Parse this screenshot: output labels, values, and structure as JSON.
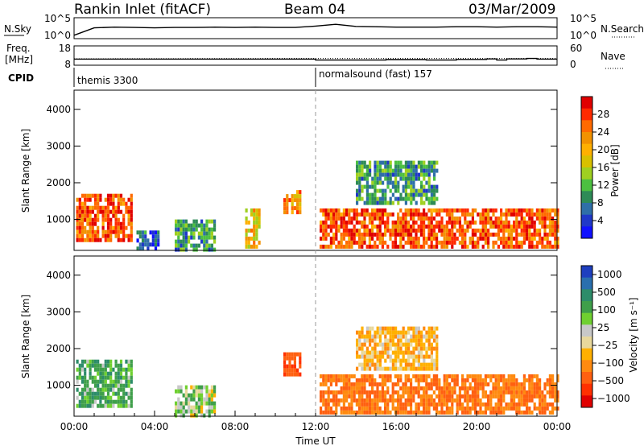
{
  "header": {
    "title": "Rankin Inlet (fitACF)",
    "beam": "Beam 04",
    "date": "03/Mar/2009"
  },
  "noise_panel": {
    "left_label": "N.Sky",
    "left_ticks": [
      "10^5",
      "10^0"
    ],
    "right_label": "N.Search",
    "right_ticks": [
      "10^5",
      "10^0"
    ]
  },
  "freq_panel": {
    "left_label_1": "Freq.",
    "left_label_2": "[MHz]",
    "left_ticks": [
      "18",
      "8"
    ],
    "right_label": "Nave",
    "right_ticks": [
      "60",
      "0"
    ]
  },
  "cpid": {
    "label": "CPID",
    "segments": [
      {
        "name": "themis 3300",
        "start_hour": 0
      },
      {
        "name": "normalsound (fast) 157",
        "start_hour": 12
      }
    ]
  },
  "axes": {
    "ylabel": "Slant Range [km]",
    "y_ticks": [
      "4000",
      "3000",
      "2000",
      "1000"
    ],
    "x_ticks": [
      "00:00",
      "04:00",
      "08:00",
      "12:00",
      "16:00",
      "20:00",
      "00:00"
    ],
    "xlabel": "Time UT"
  },
  "colorbars": {
    "power": {
      "label": "Power [dB]",
      "ticks": [
        "28",
        "24",
        "20",
        "16",
        "12",
        "8",
        "4"
      ],
      "colors": [
        "#e00000",
        "#ff2a00",
        "#ff6a00",
        "#f29200",
        "#ffb000",
        "#d8c000",
        "#9fd020",
        "#4cc040",
        "#2e8b57",
        "#2f6fa8",
        "#2038c8",
        "#1010ff"
      ]
    },
    "velocity": {
      "label": "Velocity [m s⁻¹]",
      "ticks": [
        "1000",
        "500",
        "100",
        "25",
        "−25",
        "−100",
        "−500",
        "−1000"
      ],
      "colors": [
        "#1e3fbf",
        "#2a6fae",
        "#2d8c6a",
        "#3f9f4a",
        "#6fd030",
        "#c8c8c8",
        "#e8d89c",
        "#ffb000",
        "#ff8a10",
        "#ff6010",
        "#ff3000",
        "#e00000"
      ]
    }
  },
  "chart_data": [
    {
      "type": "line",
      "panel": "noise",
      "series": [
        {
          "x": [
            0,
            1,
            2,
            3,
            4,
            5,
            6,
            7,
            8,
            9,
            10,
            11,
            12,
            13,
            14,
            15,
            16,
            17,
            18,
            19,
            20,
            21,
            22,
            23,
            24
          ],
          "y": [
            0.5,
            2.6,
            2.8,
            2.7,
            2.6,
            2.7,
            2.7,
            2.8,
            2.7,
            2.8,
            2.7,
            2.7,
            3.1,
            3.6,
            3.0,
            2.9,
            2.8,
            2.8,
            2.8,
            2.9,
            2.9,
            2.8,
            2.9,
            2.9,
            2.8
          ]
        }
      ]
    },
    {
      "type": "line",
      "panel": "frequency",
      "series": [
        {
          "x": [
            0,
            12,
            12,
            15.5,
            15.5,
            17.5,
            17.5,
            19,
            19,
            20.5,
            20.5,
            21,
            21,
            21.5,
            21.5,
            22.5,
            22.5,
            23,
            23,
            24
          ],
          "y": [
            10.8,
            10.8,
            10.2,
            10.2,
            10.5,
            10.5,
            10.2,
            10.2,
            10.6,
            10.6,
            10.9,
            10.9,
            10.2,
            10.2,
            10.9,
            10.9,
            11.2,
            11.2,
            10.8,
            10.8
          ]
        },
        {
          "x": [
            0,
            12,
            24
          ],
          "y": [
            11.0,
            11.2,
            11.2
          ]
        }
      ]
    },
    {
      "type": "heatmap",
      "panel": "power",
      "x_range": [
        0,
        24
      ],
      "y_range": [
        180,
        4500
      ],
      "z_label": "Power [dB]",
      "regions": [
        {
          "t0": 0.1,
          "t1": 2.9,
          "r0": 400,
          "r1": 1700,
          "z": 26
        },
        {
          "t0": 3.1,
          "t1": 4.2,
          "r0": 180,
          "r1": 700,
          "z": 8
        },
        {
          "t0": 5.0,
          "t1": 7.0,
          "r0": 180,
          "r1": 1000,
          "z": 12
        },
        {
          "t0": 8.5,
          "t1": 9.2,
          "r0": 300,
          "r1": 1300,
          "z": 20
        },
        {
          "t0": 10.4,
          "t1": 11.2,
          "r0": 1200,
          "r1": 1800,
          "z": 22
        },
        {
          "t0": 12.2,
          "t1": 24.0,
          "r0": 300,
          "r1": 1300,
          "z": 26
        },
        {
          "t0": 14.0,
          "t1": 18.0,
          "r0": 1400,
          "r1": 2600,
          "z": 12
        }
      ]
    },
    {
      "type": "heatmap",
      "panel": "velocity",
      "x_range": [
        0,
        24
      ],
      "y_range": [
        180,
        4500
      ],
      "z_label": "Velocity [m s⁻¹]",
      "regions": [
        {
          "t0": 0.1,
          "t1": 2.9,
          "r0": 400,
          "r1": 1700,
          "z": 100
        },
        {
          "t0": 5.0,
          "t1": 7.0,
          "r0": 180,
          "r1": 1000,
          "z": 25
        },
        {
          "t0": 10.4,
          "t1": 11.2,
          "r0": 1300,
          "r1": 1900,
          "z": -500
        },
        {
          "t0": 12.2,
          "t1": 24.0,
          "r0": 300,
          "r1": 1300,
          "z": -300
        },
        {
          "t0": 14.0,
          "t1": 18.0,
          "r0": 1400,
          "r1": 2600,
          "z": -100
        }
      ]
    }
  ]
}
